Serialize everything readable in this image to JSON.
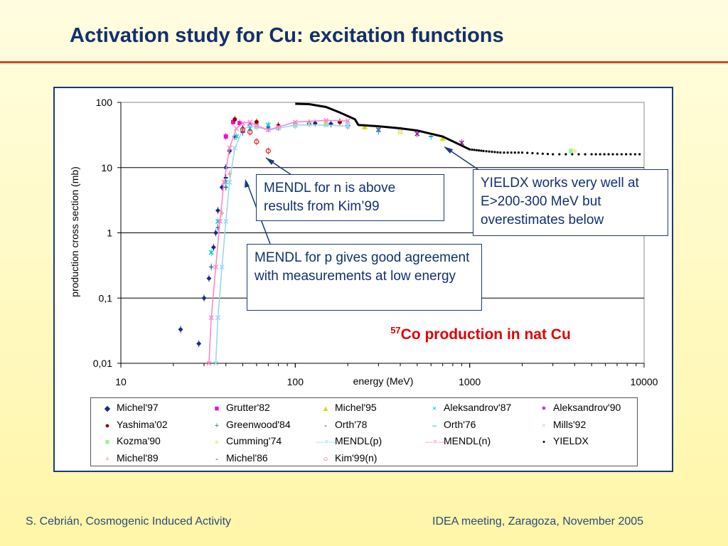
{
  "slide": {
    "title": "Activation study for Cu: excitation functions",
    "footer_left": "S. Cebrián, Cosmogenic Induced Activity",
    "footer_right": "IDEA meeting, Zaragoza, November 2005"
  },
  "annotations": {
    "mendl_n": "MENDL for n is above results from Kim’99",
    "mendl_p": "MENDL for p gives good agreement with measurements at low energy",
    "yieldx": "YIELDX works very well at E>200-300 MeV but overestimates below",
    "product_sup": "57",
    "product_text": "Co production in nat Cu"
  },
  "colors": {
    "title": "#12306e",
    "rule": "#d24a2a",
    "frame": "#1b3a7a",
    "highlight": "#e00000"
  },
  "chart_data": {
    "type": "scatter",
    "xlabel": "energy (MeV)",
    "ylabel": "production cross section (mb)",
    "x_scale": "log",
    "y_scale": "log",
    "xlim": [
      10,
      10000
    ],
    "ylim": [
      0.01,
      100
    ],
    "x_ticks": [
      10,
      100,
      1000,
      10000
    ],
    "x_tick_labels": [
      "10",
      "100",
      "1000",
      "10000"
    ],
    "y_ticks": [
      0.01,
      0.1,
      1,
      10,
      100
    ],
    "y_tick_labels": [
      "0,01",
      "0,1",
      "1",
      "10",
      "100"
    ],
    "grid": true,
    "legend_placement": "bottom",
    "series": [
      {
        "name": "Michel'97",
        "marker": "diamond",
        "color": "#1a2a8a",
        "points": [
          [
            28,
            0.02
          ],
          [
            30,
            0.1
          ],
          [
            32,
            0.2
          ],
          [
            34,
            0.6
          ],
          [
            35,
            1.0
          ],
          [
            36,
            2.2
          ],
          [
            38,
            5
          ],
          [
            40,
            10
          ],
          [
            42,
            18
          ],
          [
            45,
            30
          ],
          [
            50,
            40
          ],
          [
            55,
            45
          ],
          [
            60,
            45
          ],
          [
            70,
            40
          ],
          [
            80,
            42
          ],
          [
            100,
            46
          ],
          [
            130,
            48
          ],
          [
            160,
            47
          ],
          [
            200,
            44
          ]
        ]
      },
      {
        "name": "Grutter'82",
        "marker": "square",
        "color": "#ff00cc",
        "points": [
          [
            40,
            30
          ],
          [
            44,
            50
          ],
          [
            48,
            48
          ],
          [
            55,
            44
          ]
        ]
      },
      {
        "name": "Michel'95",
        "marker": "triangle",
        "color": "#d8d800",
        "points": [
          [
            150,
            47
          ],
          [
            250,
            42
          ],
          [
            400,
            36
          ],
          [
            700,
            28
          ]
        ]
      },
      {
        "name": "Aleksandrov'87",
        "marker": "x",
        "color": "#00c8d0",
        "points": [
          [
            33,
            0.5
          ],
          [
            36,
            1.5
          ],
          [
            40,
            6
          ],
          [
            46,
            30
          ],
          [
            55,
            40
          ],
          [
            70,
            45
          ]
        ]
      },
      {
        "name": "Aleksandrov'90",
        "marker": "star",
        "color": "#8a1a9a",
        "points": [
          [
            300,
            38
          ],
          [
            500,
            33
          ],
          [
            900,
            24
          ]
        ]
      },
      {
        "name": "Yashima'02",
        "marker": "circle",
        "color": "#8a0000",
        "points": [
          [
            45,
            55
          ],
          [
            60,
            50
          ],
          [
            80,
            44
          ],
          [
            120,
            48
          ],
          [
            180,
            50
          ]
        ]
      },
      {
        "name": "Greenwood'84",
        "marker": "plus",
        "color": "#2a7a8a",
        "points": [
          [
            33,
            0.3
          ],
          [
            36,
            1.2
          ],
          [
            40,
            5
          ]
        ]
      },
      {
        "name": "Orth'78",
        "marker": "dash",
        "color": "#1a2a8a",
        "points": [
          [
            100,
            45
          ],
          [
            200,
            44
          ],
          [
            400,
            37
          ]
        ]
      },
      {
        "name": "Orth'76",
        "marker": "dash",
        "color": "#00a8d0",
        "points": [
          [
            300,
            36
          ],
          [
            600,
            30
          ]
        ]
      },
      {
        "name": "Mills'92",
        "marker": "x",
        "color": "#a0e0f0",
        "points": [
          [
            120,
            47
          ],
          [
            200,
            45
          ]
        ]
      },
      {
        "name": "Kozma'90",
        "marker": "square",
        "color": "#a0f0a0",
        "points": [
          [
            60,
            42
          ],
          [
            100,
            44
          ],
          [
            3800,
            18
          ]
        ]
      },
      {
        "name": "Cumming'74",
        "marker": "circle",
        "color": "#f0f0a0",
        "points": [
          [
            400,
            36
          ],
          [
            4000,
            18
          ]
        ]
      },
      {
        "name": "MENDL(p)",
        "marker": "line",
        "color": "#9ad8f0",
        "points": [
          [
            35,
            0.01
          ],
          [
            36,
            0.05
          ],
          [
            38,
            0.3
          ],
          [
            40,
            1.5
          ],
          [
            42,
            6
          ],
          [
            45,
            20
          ],
          [
            50,
            38
          ],
          [
            55,
            44
          ],
          [
            60,
            42
          ],
          [
            70,
            38
          ],
          [
            80,
            40
          ],
          [
            100,
            45
          ],
          [
            150,
            45
          ],
          [
            200,
            43
          ]
        ]
      },
      {
        "name": "MENDL(n)",
        "marker": "line",
        "color": "#ff88cc",
        "points": [
          [
            32,
            0.01
          ],
          [
            33,
            0.05
          ],
          [
            35,
            0.3
          ],
          [
            37,
            1.5
          ],
          [
            39,
            6
          ],
          [
            42,
            20
          ],
          [
            46,
            40
          ],
          [
            50,
            48
          ],
          [
            55,
            50
          ],
          [
            60,
            44
          ],
          [
            70,
            38
          ],
          [
            80,
            42
          ],
          [
            100,
            50
          ],
          [
            150,
            53
          ],
          [
            200,
            52
          ]
        ]
      },
      {
        "name": "YIELDX",
        "marker": "dot",
        "color": "#000000",
        "points": [
          [
            100,
            95
          ],
          [
            120,
            94
          ],
          [
            150,
            85
          ],
          [
            180,
            70
          ],
          [
            220,
            55
          ],
          [
            230,
            45
          ],
          [
            300,
            43
          ],
          [
            400,
            40
          ],
          [
            500,
            37
          ],
          [
            700,
            30
          ],
          [
            1000,
            19
          ],
          [
            1200,
            18
          ],
          [
            1500,
            17
          ],
          [
            2000,
            17
          ],
          [
            3000,
            16
          ],
          [
            5000,
            16
          ],
          [
            7000,
            16
          ],
          [
            10000,
            16
          ]
        ]
      },
      {
        "name": "Michel'89",
        "marker": "plus",
        "color": "#f0a080",
        "points": [
          [
            38,
            2
          ],
          [
            42,
            8
          ],
          [
            50,
            36
          ]
        ]
      },
      {
        "name": "Michel'86",
        "marker": "dash",
        "color": "#1a2a8a",
        "points": [
          [
            40,
            7
          ],
          [
            50,
            35
          ]
        ]
      },
      {
        "name": "Kim'99(n)",
        "marker": "ring",
        "color": "#e03030",
        "points": [
          [
            50,
            38
          ],
          [
            55,
            35
          ],
          [
            60,
            25
          ],
          [
            70,
            18
          ]
        ]
      },
      {
        "name": "",
        "marker": "diamond",
        "color": "#1a2a8a",
        "points": [
          [
            22,
            0.033
          ]
        ]
      }
    ]
  },
  "legend": {
    "items": [
      {
        "label": "Michel'97",
        "symbol": "◆",
        "color": "#1a2a8a"
      },
      {
        "label": "Grutter'82",
        "symbol": "■",
        "color": "#ff00cc"
      },
      {
        "label": "Michel'95",
        "symbol": "▲",
        "color": "#d8d800"
      },
      {
        "label": "Aleksandrov'87",
        "symbol": "×",
        "color": "#00c8d0"
      },
      {
        "label": "Aleksandrov'90",
        "symbol": "✶",
        "color": "#8a1a9a"
      },
      {
        "label": "Yashima'02",
        "symbol": "●",
        "color": "#8a0000"
      },
      {
        "label": "Greenwood'84",
        "symbol": "+",
        "color": "#2a7a8a"
      },
      {
        "label": "Orth'78",
        "symbol": "-",
        "color": "#1a2a8a"
      },
      {
        "label": "Orth'76",
        "symbol": "–",
        "color": "#00a8d0"
      },
      {
        "label": "Mills'92",
        "symbol": "×",
        "color": "#a0e0f0"
      },
      {
        "label": "Kozma'90",
        "symbol": "■",
        "color": "#a0f0a0"
      },
      {
        "label": "Cumming'74",
        "symbol": "●",
        "color": "#f0f0a0"
      },
      {
        "label": "MENDL(p)",
        "symbol": "—×—",
        "color": "#9ad8f0"
      },
      {
        "label": "MENDL(n)",
        "symbol": "—×—",
        "color": "#ff88cc"
      },
      {
        "label": "YIELDX",
        "symbol": "•",
        "color": "#000000"
      },
      {
        "label": "Michel'89",
        "symbol": "+",
        "color": "#f0a080"
      },
      {
        "label": "Michel'86",
        "symbol": "-",
        "color": "#1a2a8a"
      },
      {
        "label": "Kim'99(n)",
        "symbol": "○",
        "color": "#e03030"
      }
    ]
  }
}
